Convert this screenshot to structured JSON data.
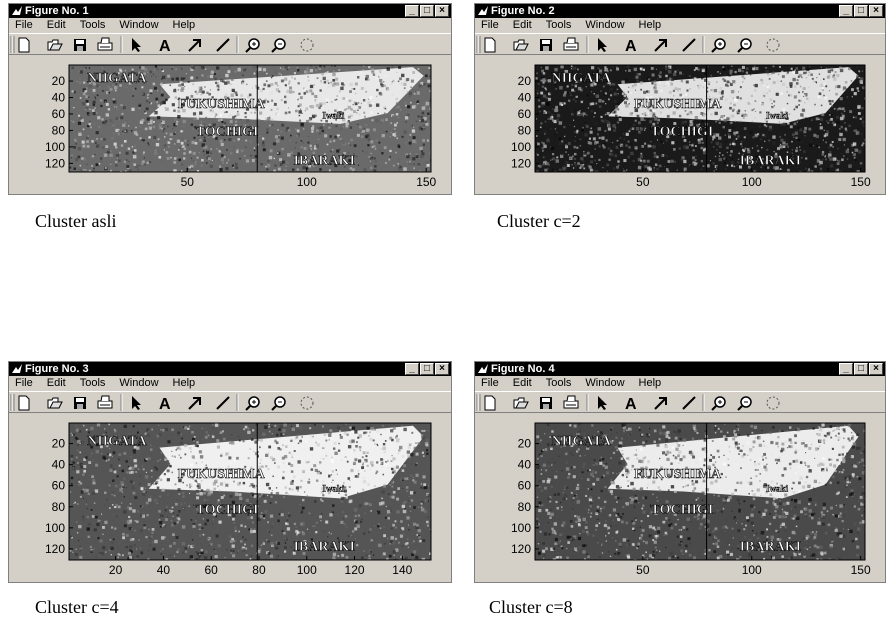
{
  "windows": [
    {
      "title": "Figure No. 1",
      "menus": [
        "File",
        "Edit",
        "Tools",
        "Window",
        "Help"
      ],
      "xticks": [
        "50",
        "100",
        "150"
      ],
      "yticks": [
        "20",
        "40",
        "60",
        "80",
        "100",
        "120"
      ],
      "map_labels": [
        "NIIGATA",
        "FUKUSHIMA",
        "TOCHIGI",
        "IBARAKI",
        "Iwaki"
      ],
      "caption": "Cluster asli"
    },
    {
      "title": "Figure No. 2",
      "menus": [
        "File",
        "Edit",
        "Tools",
        "Window",
        "Help"
      ],
      "xticks": [
        "50",
        "100",
        "150"
      ],
      "yticks": [
        "20",
        "40",
        "60",
        "80",
        "100",
        "120"
      ],
      "map_labels": [
        "NIIGATA",
        "FUKUSHIMA",
        "TOCHIGI",
        "IBARAKI",
        "Iwaki"
      ],
      "caption": "Cluster c=2"
    },
    {
      "title": "Figure No. 3",
      "menus": [
        "File",
        "Edit",
        "Tools",
        "Window",
        "Help"
      ],
      "xticks": [
        "20",
        "40",
        "60",
        "80",
        "100",
        "120",
        "140"
      ],
      "yticks": [
        "20",
        "40",
        "60",
        "80",
        "100",
        "120"
      ],
      "map_labels": [
        "NIIGATA",
        "FUKUSHIMA",
        "TOCHIGI",
        "IBARAKI",
        "Iwaki"
      ],
      "caption": "Cluster c=4"
    },
    {
      "title": "Figure No. 4",
      "menus": [
        "File",
        "Edit",
        "Tools",
        "Window",
        "Help"
      ],
      "xticks": [
        "50",
        "100",
        "150"
      ],
      "yticks": [
        "20",
        "40",
        "60",
        "80",
        "100",
        "120"
      ],
      "map_labels": [
        "NIIGATA",
        "FUKUSHIMA",
        "TOCHIGI",
        "IBARAKI",
        "Iwaki"
      ],
      "caption": "Cluster c=8"
    }
  ],
  "icons": [
    "new-icon",
    "open-icon",
    "save-icon",
    "print-icon",
    "pointer-icon",
    "text-icon",
    "arrow-icon",
    "line-icon",
    "zoom-in-icon",
    "zoom-out-icon",
    "rotate-icon"
  ],
  "colors": {
    "window_bg": "#d4d0c8",
    "titlebar": "#000000",
    "title_text": "#ffffff"
  }
}
